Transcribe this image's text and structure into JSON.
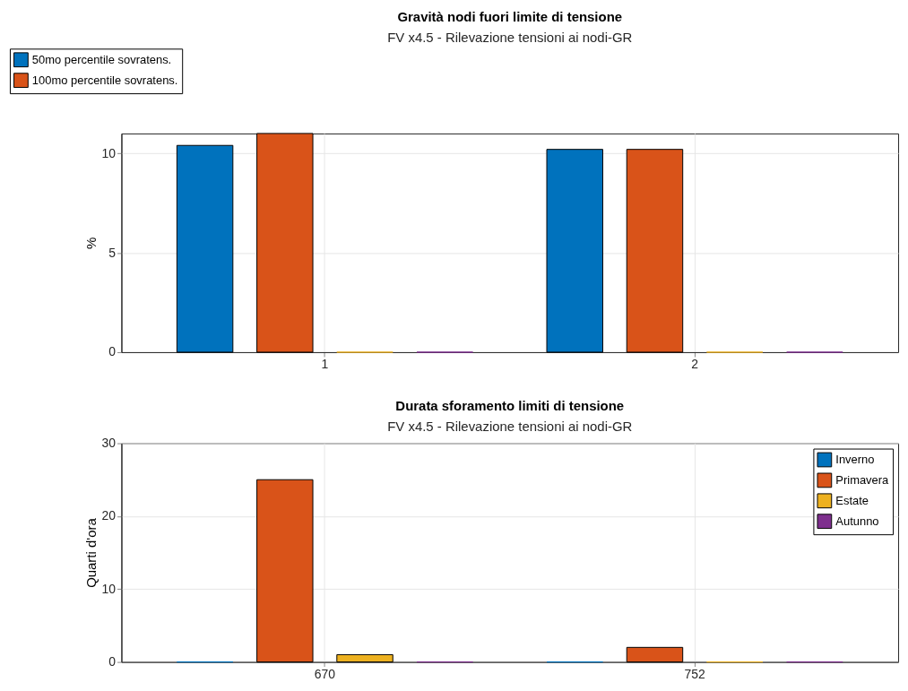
{
  "chart_data": [
    {
      "type": "bar",
      "title": "Gravità nodi fuori limite di tensione",
      "subtitle": "FV x4.5 - Rilevazione tensioni ai nodi-GR",
      "ylabel": "%",
      "categories": [
        "1",
        "2"
      ],
      "ylim": [
        0,
        11
      ],
      "yticks": [
        0,
        5,
        10
      ],
      "grid": true,
      "legend": "top left",
      "series": [
        {
          "name": "50mo percentile sovratens.",
          "color": "#0072bd",
          "values": [
            10.4,
            10.2
          ]
        },
        {
          "name": "100mo percentile sovratens.",
          "color": "#d95319",
          "values": [
            11,
            10.2
          ]
        },
        {
          "color": "#edb120",
          "values": [
            0,
            0
          ]
        },
        {
          "color": "#7e2f8e",
          "values": [
            0,
            0
          ]
        }
      ]
    },
    {
      "type": "bar",
      "title": "Durata sforamento limiti di tensione",
      "subtitle": "FV x4.5 - Rilevazione tensioni ai nodi-GR",
      "ylabel": "Quarti d'ora",
      "categories": [
        "670",
        "752"
      ],
      "ylim": [
        0,
        30
      ],
      "yticks": [
        0,
        10,
        20,
        30
      ],
      "grid": true,
      "legend": "top right",
      "series": [
        {
          "name": "Inverno",
          "color": "#0072bd",
          "values": [
            0,
            0
          ]
        },
        {
          "name": "Primavera",
          "color": "#d95319",
          "values": [
            25,
            2
          ]
        },
        {
          "name": "Estate",
          "color": "#edb120",
          "values": [
            1,
            0
          ]
        },
        {
          "name": "Autunno",
          "color": "#7e2f8e",
          "values": [
            0,
            0
          ]
        }
      ]
    }
  ]
}
